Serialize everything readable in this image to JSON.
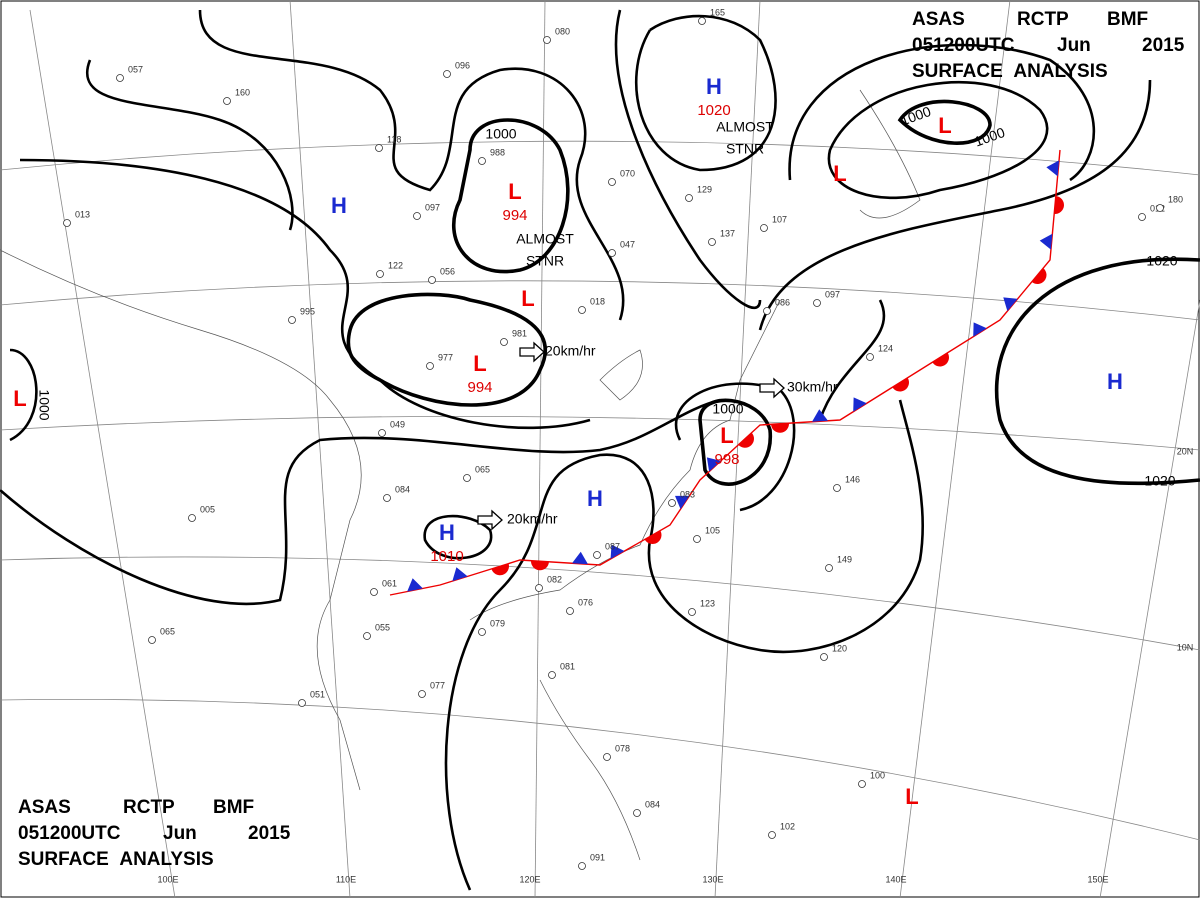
{
  "header": {
    "line1": [
      "ASAS",
      "RCTP",
      "BMF"
    ],
    "line2": [
      "051200UTC",
      "Jun",
      "2015"
    ],
    "line3": "SURFACE ANALYSIS"
  },
  "pressure_systems": [
    {
      "symbol": "H"
    },
    {
      "symbol": "L",
      "pressure": 994
    },
    {
      "symbol": "L",
      "pressure": 994
    },
    {
      "symbol": "L"
    },
    {
      "symbol": "L"
    },
    {
      "symbol": "H",
      "pressure": 1020
    },
    {
      "symbol": "L"
    },
    {
      "symbol": "L"
    },
    {
      "symbol": "H"
    },
    {
      "symbol": "H",
      "pressure": 1010
    },
    {
      "symbol": "L",
      "pressure": 998
    },
    {
      "symbol": "H"
    },
    {
      "symbol": "L"
    }
  ],
  "isobar_labels": [
    1000,
    1000,
    1000,
    1000,
    1000,
    1020,
    1020
  ],
  "motion": [
    "20km/hr",
    "20km/hr",
    "30km/hr"
  ],
  "notes": [
    {
      "lines": [
        "ALMOST",
        "STNR"
      ]
    },
    {
      "lines": [
        "ALMOST",
        "STNR"
      ]
    }
  ],
  "longitude_labels": [
    "100E",
    "110E",
    "120E",
    "130E",
    "140E",
    "150E"
  ],
  "latitude_labels": [
    "20N",
    "10N"
  ],
  "stations": [
    "057",
    "013",
    "995",
    "049",
    "065",
    "084",
    "005",
    "061",
    "055",
    "065",
    "051",
    "077",
    "081",
    "079",
    "076",
    "087",
    "082",
    "083",
    "105",
    "123",
    "120",
    "146",
    "149",
    "124",
    "097",
    "086",
    "137",
    "107",
    "129",
    "047",
    "018",
    "070",
    "981",
    "977",
    "988",
    "160",
    "118",
    "122",
    "056",
    "097",
    "096",
    "080",
    "165",
    "012",
    "180",
    "102",
    "100",
    "091",
    "084",
    "078"
  ]
}
